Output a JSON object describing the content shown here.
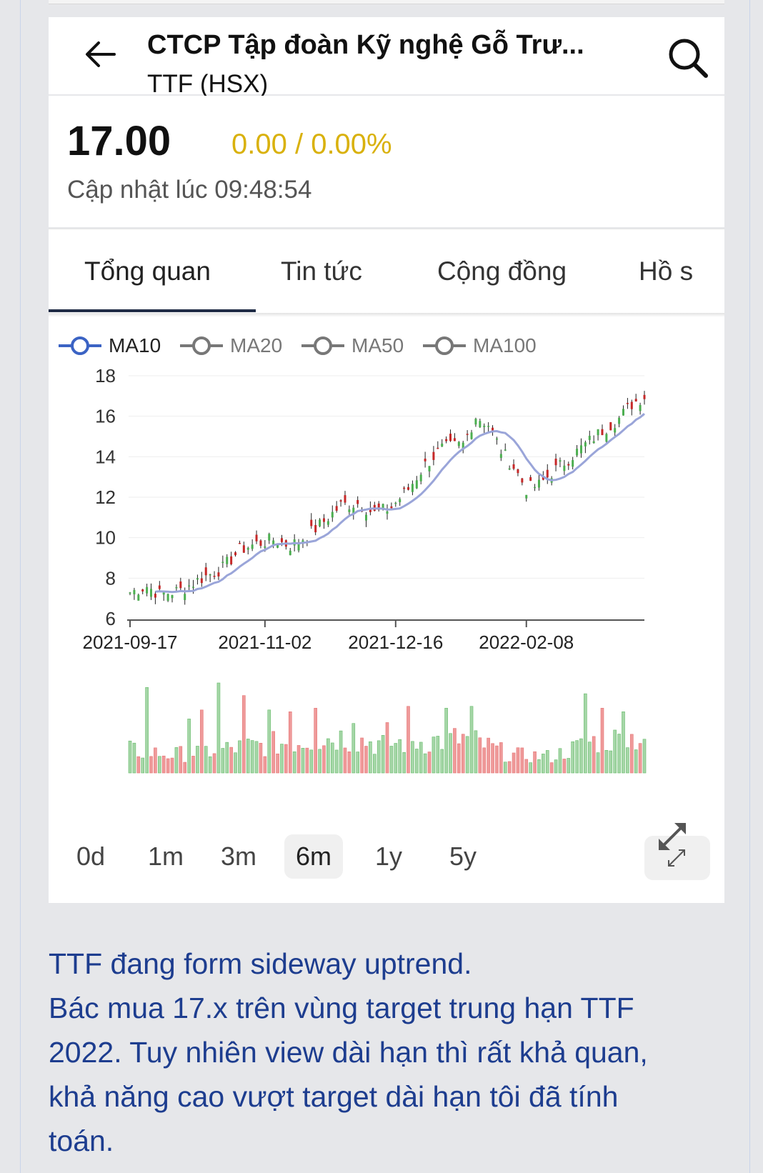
{
  "header": {
    "title": "CTCP Tập đoàn Kỹ nghệ Gỗ Trư...",
    "subtitle": "TTF (HSX)"
  },
  "quote": {
    "price": "17.00",
    "change": "0.00 / 0.00%",
    "updated": "Cập nhật lúc 09:48:54",
    "change_color": "#d9b10c"
  },
  "tabs": [
    {
      "label": "Tổng quan",
      "active": true
    },
    {
      "label": "Tin tức",
      "active": false
    },
    {
      "label": "Cộng đồng",
      "active": false
    },
    {
      "label": "Hồ s",
      "active": false
    }
  ],
  "legend": [
    {
      "label": "MA10",
      "active": true,
      "color": "#3b63c4"
    },
    {
      "label": "MA20",
      "active": false,
      "color": "#777777"
    },
    {
      "label": "MA50",
      "active": false,
      "color": "#777777"
    },
    {
      "label": "MA100",
      "active": false,
      "color": "#777777"
    }
  ],
  "ranges": [
    {
      "label": "0d",
      "active": false
    },
    {
      "label": "1m",
      "active": false
    },
    {
      "label": "3m",
      "active": false
    },
    {
      "label": "6m",
      "active": true
    },
    {
      "label": "1y",
      "active": false
    },
    {
      "label": "5y",
      "active": false
    }
  ],
  "expand_icon": "expand-arrows-icon",
  "chart_data": {
    "type": "candlestick",
    "y_ticks": [
      "18",
      "16",
      "14",
      "12",
      "10",
      "8",
      "6"
    ],
    "ylim": [
      6,
      18
    ],
    "x_ticks": [
      "2021-09-17",
      "2021-11-02",
      "2021-12-16",
      "2022-02-08"
    ],
    "x_tick_index": [
      0,
      32,
      63,
      94
    ],
    "n_sessions": 123,
    "up_color": "#4caf50",
    "down_color": "#c62828",
    "ma_color": "#9aa5d9",
    "price_anchors": [
      [
        0,
        7.3
      ],
      [
        4,
        7.6
      ],
      [
        7,
        7.2
      ],
      [
        12,
        7.4
      ],
      [
        17,
        8.0
      ],
      [
        22,
        8.5
      ],
      [
        26,
        9.4
      ],
      [
        30,
        9.7
      ],
      [
        34,
        9.9
      ],
      [
        38,
        9.6
      ],
      [
        42,
        10.1
      ],
      [
        46,
        10.8
      ],
      [
        50,
        11.6
      ],
      [
        54,
        11.7
      ],
      [
        58,
        11.2
      ],
      [
        62,
        11.5
      ],
      [
        66,
        12.4
      ],
      [
        70,
        13.6
      ],
      [
        74,
        14.4
      ],
      [
        79,
        14.6
      ],
      [
        82,
        16.0
      ],
      [
        85,
        15.6
      ],
      [
        88,
        14.3
      ],
      [
        91,
        13.5
      ],
      [
        94,
        12.4
      ],
      [
        97,
        12.6
      ],
      [
        100,
        13.2
      ],
      [
        104,
        13.9
      ],
      [
        108,
        14.6
      ],
      [
        112,
        15.3
      ],
      [
        116,
        15.9
      ],
      [
        119,
        16.6
      ],
      [
        122,
        17.0
      ]
    ],
    "volume_anchors": [
      [
        0,
        0.25
      ],
      [
        10,
        0.2
      ],
      [
        20,
        0.25
      ],
      [
        30,
        0.3
      ],
      [
        40,
        0.35
      ],
      [
        50,
        0.4
      ],
      [
        60,
        0.32
      ],
      [
        70,
        0.35
      ],
      [
        80,
        0.38
      ],
      [
        90,
        0.2
      ],
      [
        100,
        0.18
      ],
      [
        110,
        0.35
      ],
      [
        122,
        0.4
      ]
    ],
    "volume_spikes": [
      [
        4,
        0.95
      ],
      [
        14,
        0.6
      ],
      [
        17,
        0.7
      ],
      [
        21,
        1.0
      ],
      [
        27,
        0.86
      ],
      [
        33,
        0.7
      ],
      [
        38,
        0.68
      ],
      [
        44,
        0.72
      ],
      [
        53,
        0.55
      ],
      [
        61,
        0.56
      ],
      [
        66,
        0.74
      ],
      [
        75,
        0.72
      ],
      [
        81,
        0.74
      ],
      [
        108,
        0.88
      ],
      [
        112,
        0.72
      ],
      [
        117,
        0.68
      ]
    ]
  },
  "post": {
    "lines": [
      "TTF đang form sideway uptrend.",
      "Bác mua 17.x trên vùng target trung hạn TTF",
      "2022. Tuy nhiên view dài hạn thì rất khả quan,",
      "khả năng cao vượt target dài hạn tôi đã tính",
      "toán."
    ]
  }
}
